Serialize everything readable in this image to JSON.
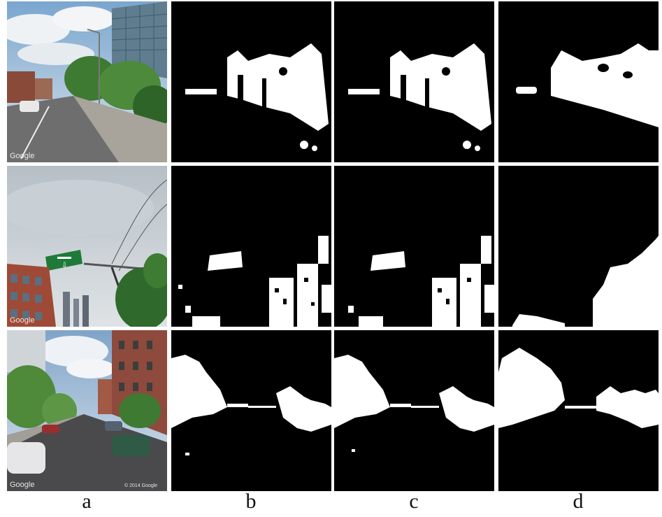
{
  "figure": {
    "column_labels": [
      "a",
      "b",
      "c",
      "d"
    ],
    "photo_watermarks": [
      "Google",
      "Google",
      "Google"
    ],
    "photo_copyright": "© 2014 Google",
    "colors": {
      "mask_foreground": "#ffffff",
      "mask_background": "#000000"
    }
  }
}
